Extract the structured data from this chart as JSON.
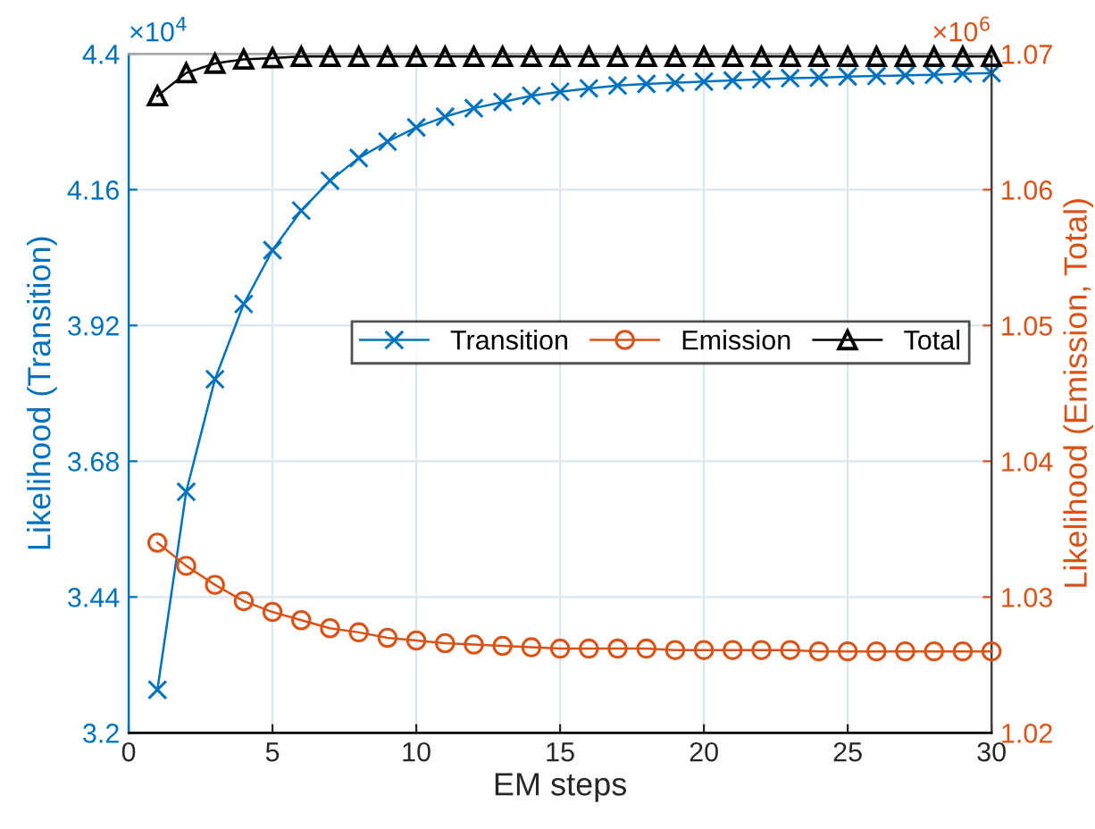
{
  "chart_data": {
    "type": "line",
    "xlabel": "EM steps",
    "ylabel": "Likelihood (Transition)",
    "y2label": "Likelihood (Emission, Total)",
    "x": [
      1,
      2,
      3,
      4,
      5,
      6,
      7,
      8,
      9,
      10,
      11,
      12,
      13,
      14,
      15,
      16,
      17,
      18,
      19,
      20,
      21,
      22,
      23,
      24,
      25,
      26,
      27,
      28,
      29,
      30
    ],
    "series": [
      {
        "name": "Transition",
        "color": "#0072bd",
        "marker": "cross",
        "axis": "y",
        "values": [
          3.276,
          3.626,
          3.825,
          3.958,
          4.053,
          4.123,
          4.176,
          4.216,
          4.245,
          4.27,
          4.289,
          4.304,
          4.315,
          4.326,
          4.333,
          4.339,
          4.344,
          4.347,
          4.349,
          4.351,
          4.353,
          4.355,
          4.357,
          4.358,
          4.36,
          4.361,
          4.362,
          4.363,
          4.365,
          4.366
        ]
      },
      {
        "name": "Emission",
        "color": "#d95319",
        "marker": "circle",
        "axis": "y2",
        "values": [
          1.034,
          1.0323,
          1.0309,
          1.0297,
          1.0289,
          1.0283,
          1.0277,
          1.0274,
          1.027,
          1.0268,
          1.0266,
          1.0265,
          1.0264,
          1.0263,
          1.0262,
          1.0262,
          1.0262,
          1.0262,
          1.0261,
          1.0261,
          1.0261,
          1.0261,
          1.0261,
          1.026,
          1.026,
          1.026,
          1.026,
          1.026,
          1.026,
          1.026
        ]
      },
      {
        "name": "Total",
        "color": "#000000",
        "marker": "triangle",
        "axis": "y2",
        "values": [
          1.0669,
          1.0686,
          1.0693,
          1.0696,
          1.0697,
          1.0698,
          1.0698,
          1.0698,
          1.0698,
          1.0698,
          1.0698,
          1.0698,
          1.0698,
          1.0698,
          1.0698,
          1.0698,
          1.0698,
          1.0698,
          1.0698,
          1.0698,
          1.0698,
          1.0698,
          1.0698,
          1.0698,
          1.0698,
          1.0698,
          1.0698,
          1.0698,
          1.0698,
          1.0698
        ]
      }
    ],
    "xlim": [
      0,
      30
    ],
    "xticks": [
      0,
      5,
      10,
      15,
      20,
      25,
      30
    ],
    "ylim": [
      3.2,
      4.4
    ],
    "yticks": [
      3.2,
      3.44,
      3.68,
      3.92,
      4.16,
      4.4
    ],
    "y2lim": [
      1.02,
      1.07
    ],
    "y2ticks": [
      1.02,
      1.03,
      1.04,
      1.05,
      1.06,
      1.07
    ],
    "annotations": [
      "×10$^{4}$",
      "×10$^{6}$"
    ],
    "grid": true,
    "legend": "right",
    "line_style": "solid"
  }
}
